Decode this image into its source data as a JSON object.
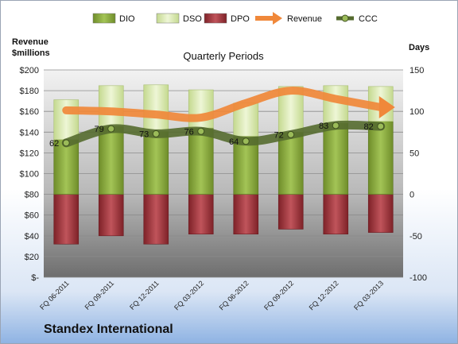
{
  "chart_data": {
    "type": "bar",
    "title": "Quarterly Periods",
    "company": "Standex International",
    "left_axis_title": [
      "Revenue",
      "$millions"
    ],
    "right_axis_title": "Days",
    "categories": [
      "FQ 06-2011",
      "FQ 09-2011",
      "FQ 12-2011",
      "FQ 03-2012",
      "FQ 06-2012",
      "FQ 09-2012",
      "FQ 12-2012",
      "FQ 03-2013"
    ],
    "left_ticks": [
      "$-",
      "$20",
      "$40",
      "$60",
      "$80",
      "$100",
      "$120",
      "$140",
      "$160",
      "$180",
      "$200"
    ],
    "right_ticks": [
      "-100",
      "-50",
      "0",
      "50",
      "100",
      "150"
    ],
    "left_ylim": [
      0,
      200
    ],
    "right_ylim": [
      -100,
      150
    ],
    "legend": [
      "DIO",
      "DSO",
      "DPO",
      "Revenue",
      "CCC"
    ],
    "legend_position": "top",
    "grid": true,
    "colors": {
      "DIO": "#8fb040",
      "DSO": "#d9eab0",
      "DPO": "#a8343c",
      "Revenue": "#f0883a",
      "CCC": "#556b2f"
    },
    "series": [
      {
        "name": "DIO",
        "axis": "right",
        "values": [
          66,
          82,
          76,
          80,
          70,
          75,
          86,
          88
        ]
      },
      {
        "name": "DSO",
        "axis": "right",
        "values": [
          48,
          49,
          56,
          46,
          40,
          55,
          45,
          42
        ]
      },
      {
        "name": "DPO",
        "axis": "right",
        "values": [
          -60,
          -50,
          -60,
          -48,
          -48,
          -42,
          -48,
          -46
        ]
      },
      {
        "name": "Revenue",
        "axis": "left",
        "values": [
          161,
          160,
          157,
          154,
          168,
          180,
          172,
          164
        ]
      },
      {
        "name": "CCC",
        "axis": "right",
        "values": [
          62,
          79,
          73,
          76,
          64,
          72,
          83,
          82
        ]
      }
    ],
    "data_labels": [
      "62",
      "79",
      "73",
      "76",
      "64",
      "72",
      "83",
      "82"
    ]
  }
}
